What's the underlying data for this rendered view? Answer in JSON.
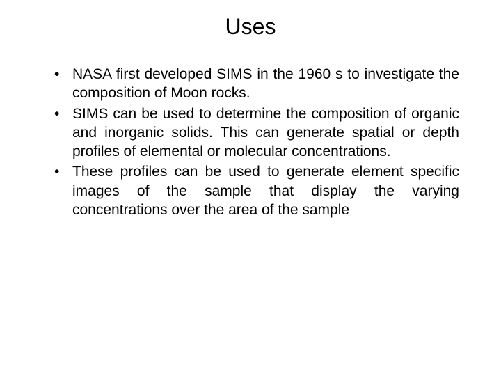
{
  "slide": {
    "title": "Uses",
    "bullets": [
      "NASA first developed SIMS in the 1960 s to investigate the composition of Moon rocks.",
      "SIMS can be used to determine the composition of organic and inorganic solids. This can generate spatial or depth profiles of elemental or molecular concentrations.",
      "These profiles can be used to generate element specific images of the sample that display the varying concentrations over the area of the sample"
    ],
    "colors": {
      "background": "#ffffff",
      "text": "#000000"
    },
    "typography": {
      "title_fontsize": 32,
      "body_fontsize": 21,
      "font_family": "Arial"
    }
  }
}
